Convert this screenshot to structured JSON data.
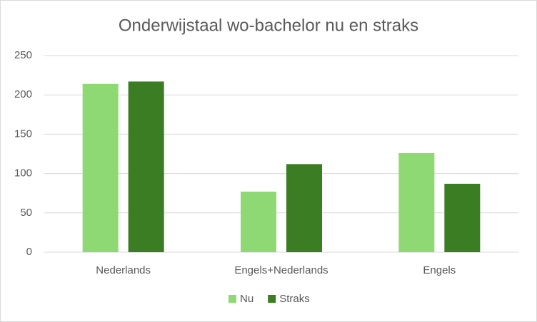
{
  "chart_data": {
    "type": "bar",
    "title": "Onderwijstaal wo-bachelor nu en straks",
    "categories": [
      "Nederlands",
      "Engels+Nederlands",
      "Engels"
    ],
    "series": [
      {
        "name": "Nu",
        "color": "#8fd974",
        "values": [
          214,
          77,
          126
        ]
      },
      {
        "name": "Straks",
        "color": "#3b7d23",
        "values": [
          217,
          112,
          87
        ]
      }
    ],
    "ylim": [
      0,
      250
    ],
    "yticks": [
      0,
      50,
      100,
      150,
      200,
      250
    ],
    "grid": true,
    "legend": "bottom"
  }
}
